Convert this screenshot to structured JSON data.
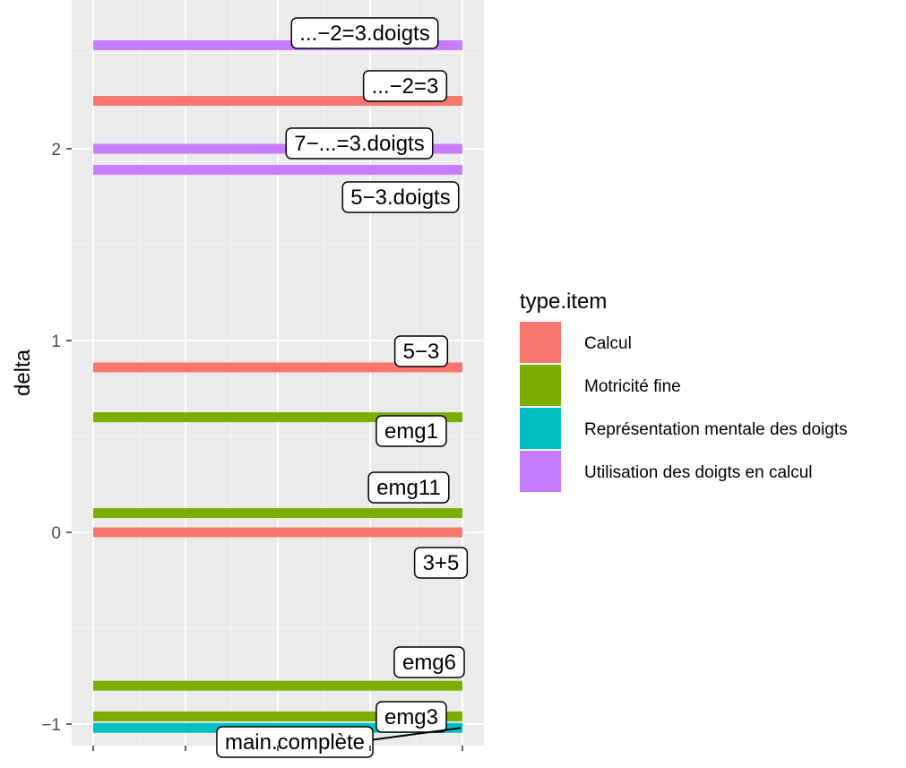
{
  "chart_data": {
    "type": "bar",
    "orientation": "horizontal-lines",
    "ylabel": "delta",
    "xlabel": "",
    "ylim": [
      -1.08,
      2.78
    ],
    "y_ticks": [
      -1,
      0,
      1,
      2
    ],
    "y_tick_labels": [
      "−1",
      "0",
      "1",
      "2"
    ],
    "x_tick_labels_shown": false,
    "grid": true,
    "legend": {
      "title": "type.item",
      "position": "right",
      "entries": [
        {
          "label": "Calcul",
          "color": "#F8766D"
        },
        {
          "label": "Motricité fine",
          "color": "#7CAE00"
        },
        {
          "label": "Représentation mentale des doigts",
          "color": "#00BFC4"
        },
        {
          "label": "Utilisation des doigts en calcul",
          "color": "#C77CFF"
        }
      ]
    },
    "items": [
      {
        "label": "...−2=3.doigts",
        "delta": 2.54,
        "type": "Utilisation des doigts en calcul"
      },
      {
        "label": "...−2=3",
        "delta": 2.25,
        "type": "Calcul"
      },
      {
        "label": "7−...=3.doigts",
        "delta": 2.0,
        "type": "Utilisation des doigts en calcul"
      },
      {
        "label": "5−3.doigts",
        "delta": 1.89,
        "type": "Utilisation des doigts en calcul"
      },
      {
        "label": "5−3",
        "delta": 0.86,
        "type": "Calcul"
      },
      {
        "label": "emg1",
        "delta": 0.6,
        "type": "Motricité fine"
      },
      {
        "label": "emg11",
        "delta": 0.1,
        "type": "Motricité fine"
      },
      {
        "label": "3+5",
        "delta": 0.0,
        "type": "Calcul"
      },
      {
        "label": "emg6",
        "delta": -0.8,
        "type": "Motricité fine"
      },
      {
        "label": "emg3",
        "delta": -0.96,
        "type": "Motricité fine"
      },
      {
        "label": "main.complète",
        "delta": -1.02,
        "type": "Représentation mentale des doigts"
      }
    ]
  }
}
